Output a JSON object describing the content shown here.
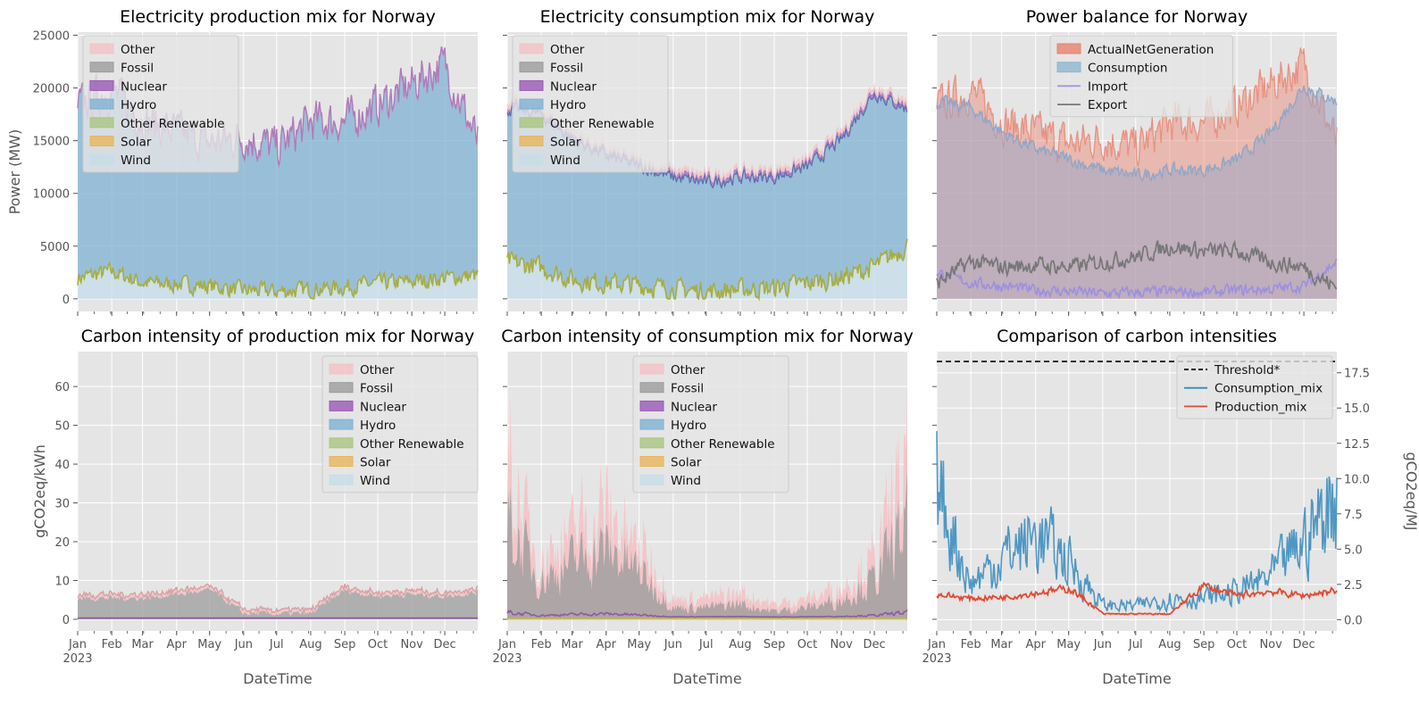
{
  "colors": {
    "Other": "#f4c2c6",
    "Fossil": "#9c9c9c",
    "Nuclear": "#9b59b6",
    "Hydro": "#7fb1d3",
    "Other Renewable": "#a9c77f",
    "Solar": "#e8b55c",
    "Wind": "#c7dde8",
    "ActualNetGeneration": "#e8826e",
    "Consumption": "#8fb6d0",
    "Import": "#9d8fe0",
    "Export": "#777777",
    "Threshold*": "#000000",
    "Consumption_mix": "#348abd",
    "Production_mix": "#e24a33"
  },
  "chart_data": [
    {
      "type": "area",
      "title": "Electricity production mix for Norway",
      "xlabel": "",
      "ylabel": "Power (MW)",
      "ylim": [
        -1200,
        25300
      ],
      "yticks": [
        "0",
        "5000",
        "10000",
        "15000",
        "20000",
        "25000"
      ],
      "legend": [
        "Other",
        "Fossil",
        "Nuclear",
        "Hydro",
        "Other Renewable",
        "Solar",
        "Wind"
      ],
      "legend_position": "top-left",
      "x_month_starts": [
        "2023-01-01",
        "2023-02-01",
        "2023-03-01",
        "2023-04-01",
        "2023-05-01",
        "2023-06-01",
        "2023-07-01",
        "2023-08-01",
        "2023-09-01",
        "2023-10-01",
        "2023-11-01",
        "2023-12-01"
      ],
      "series_samples": {
        "Wind_stack_top": [
          2000,
          2600,
          1500,
          1400,
          1200,
          800,
          700,
          900,
          1100,
          1500,
          1600,
          2000,
          2200
        ],
        "Hydro_stack_top": [
          18000,
          19500,
          16500,
          15500,
          14500,
          15000,
          14000,
          16500,
          16500,
          18000,
          20000,
          22000,
          14500
        ]
      }
    },
    {
      "type": "area",
      "title": "Electricity consumption mix for Norway",
      "xlabel": "",
      "ylabel": "",
      "ylim": [
        -1200,
        25300
      ],
      "legend": [
        "Other",
        "Fossil",
        "Nuclear",
        "Hydro",
        "Other Renewable",
        "Solar",
        "Wind"
      ],
      "legend_position": "top-left",
      "series_samples": {
        "Wind_stack_top": [
          3500,
          3000,
          1800,
          1500,
          1300,
          900,
          700,
          900,
          1000,
          1500,
          2000,
          3000,
          5000
        ],
        "Hydro_stack_top": [
          18000,
          17500,
          15000,
          13500,
          12500,
          11500,
          11000,
          11500,
          11500,
          12500,
          15000,
          19500,
          18000
        ]
      }
    },
    {
      "type": "area",
      "title": "Power balance for Norway",
      "xlabel": "",
      "ylabel": "",
      "ylim": [
        -1200,
        25300
      ],
      "legend": [
        "ActualNetGeneration",
        "Consumption",
        "Import",
        "Export"
      ],
      "legend_position": "top-center",
      "series_samples": {
        "ActualNetGeneration": [
          18000,
          19500,
          16500,
          15500,
          14500,
          15000,
          14000,
          16500,
          16500,
          18000,
          20000,
          22000,
          14500
        ],
        "Consumption": [
          18000,
          17500,
          15000,
          13500,
          12500,
          11500,
          11000,
          11500,
          11500,
          12500,
          15000,
          19500,
          18000
        ],
        "Import": [
          2500,
          1500,
          1200,
          800,
          700,
          500,
          600,
          700,
          600,
          800,
          900,
          1200,
          3500
        ],
        "Export": [
          1500,
          3500,
          3000,
          3200,
          3000,
          3500,
          4000,
          5000,
          4500,
          4500,
          3500,
          3000,
          1000
        ]
      }
    },
    {
      "type": "area",
      "title": "Carbon intensity of production mix for Norway",
      "xlabel": "DateTime",
      "ylabel": "gCO2eq/kWh",
      "ylim": [
        -3,
        69
      ],
      "yticks": [
        "0",
        "10",
        "20",
        "30",
        "40",
        "50",
        "60"
      ],
      "xticks": [
        "Jan\n2023",
        "Feb",
        "Mar",
        "Apr",
        "May",
        "Jun",
        "Jul",
        "Aug",
        "Sep",
        "Oct",
        "Nov",
        "Dec"
      ],
      "legend": [
        "Other",
        "Fossil",
        "Nuclear",
        "Hydro",
        "Other Renewable",
        "Solar",
        "Wind"
      ],
      "legend_position": "top-right",
      "series_samples": {
        "Fossil_stack_top": [
          5.5,
          5.5,
          5.5,
          6.5,
          7.5,
          1.5,
          1.5,
          1.5,
          7.5,
          6,
          6.5,
          6,
          7
        ],
        "Other_stack_top": [
          6.5,
          6,
          6,
          7.5,
          8.5,
          1.8,
          1.8,
          1.8,
          8.5,
          7,
          7.5,
          7,
          8
        ]
      }
    },
    {
      "type": "area",
      "title": "Carbon intensity of consumption mix for Norway",
      "xlabel": "DateTime",
      "ylabel": "",
      "ylim": [
        -3,
        69
      ],
      "xticks": [
        "Jan\n2023",
        "Feb",
        "Mar",
        "Apr",
        "May",
        "Jun",
        "Jul",
        "Aug",
        "Sep",
        "Oct",
        "Nov",
        "Dec"
      ],
      "legend": [
        "Other",
        "Fossil",
        "Nuclear",
        "Hydro",
        "Other Renewable",
        "Solar",
        "Wind"
      ],
      "legend_position": "top-center",
      "series_samples": {
        "Fossil_stack_top": [
          25,
          10,
          15,
          18,
          12,
          3,
          3,
          4,
          2,
          3,
          5,
          10,
          25
        ],
        "Other_stack_top": [
          33,
          14,
          20,
          25,
          18,
          6,
          6,
          7,
          4,
          5,
          8,
          15,
          35
        ]
      }
    },
    {
      "type": "line",
      "title": "Comparison of carbon intensities",
      "xlabel": "DateTime",
      "ylabel": "gCO2eq/MJ",
      "ylim": [
        -0.8,
        19.0
      ],
      "yticks": [
        "0.0",
        "2.5",
        "5.0",
        "7.5",
        "10.0",
        "12.5",
        "15.0",
        "17.5"
      ],
      "xticks": [
        "Jan\n2023",
        "Feb",
        "Mar",
        "Apr",
        "May",
        "Jun",
        "Jul",
        "Aug",
        "Sep",
        "Oct",
        "Nov",
        "Dec"
      ],
      "legend": [
        "Threshold*",
        "Consumption_mix",
        "Production_mix"
      ],
      "legend_position": "top-right",
      "threshold": 18.3,
      "series_samples": {
        "Consumption_mix": [
          9.5,
          2.5,
          4.5,
          6.0,
          4.0,
          1.0,
          1.0,
          1.5,
          1.5,
          2.0,
          3.0,
          5.5,
          9.0
        ],
        "Production_mix": [
          1.8,
          1.5,
          1.6,
          1.9,
          2.2,
          0.4,
          0.4,
          0.4,
          2.4,
          1.7,
          2.0,
          1.7,
          2.1
        ]
      }
    }
  ]
}
